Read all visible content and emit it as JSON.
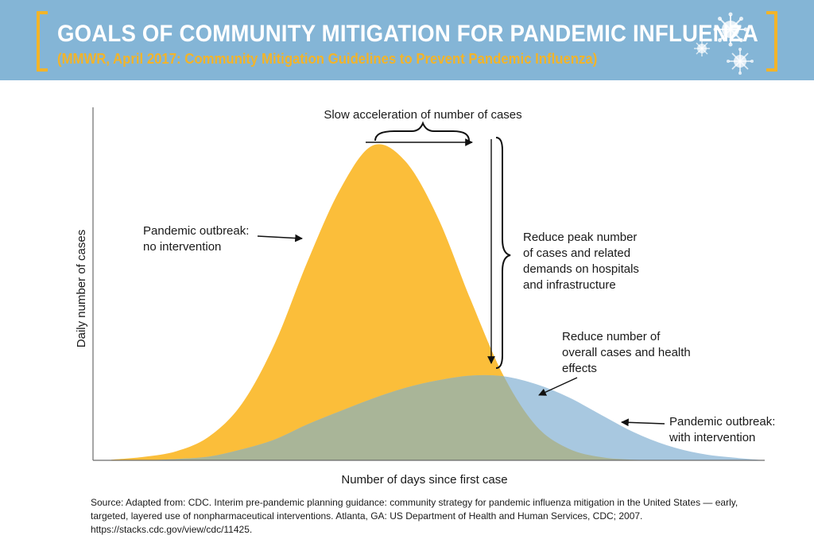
{
  "header": {
    "title": "GOALS OF COMMUNITY MITIGATION FOR PANDEMIC INFLUENZA",
    "subtitle": "(MMWR, April 2017: Community Mitigation Guidelines to Prevent Pandemic Influenza)",
    "banner_color": "#84b5d6",
    "accent_color": "#f2b42a",
    "decoration_icon": "virus-icon"
  },
  "chart_data": {
    "type": "area",
    "xlabel": "Number of days since first case",
    "ylabel": "Daily number of cases",
    "grid": false,
    "legend": "none",
    "x_range": [
      0,
      100
    ],
    "y_range": [
      0,
      100
    ],
    "x": [
      0,
      5,
      10,
      15,
      20,
      25,
      30,
      35,
      40,
      45,
      50,
      55,
      60,
      65,
      70,
      75,
      80,
      85,
      90,
      95,
      100
    ],
    "series": [
      {
        "name": "Pandemic outbreak: no intervention",
        "color": "#fbbe3a",
        "values": [
          0.2,
          1.1,
          2.9,
          7.6,
          18,
          37,
          63,
          86,
          100,
          95,
          77,
          51,
          27,
          11,
          3.7,
          1.0,
          0.2,
          0.0,
          0.0,
          0.0,
          0.0
        ]
      },
      {
        "name": "Pandemic outbreak: with intervention",
        "color": "#a8c8e0",
        "values": [
          0.0,
          0.0,
          0.4,
          1.2,
          3.5,
          6.6,
          11.4,
          15.6,
          19.6,
          23.0,
          25.4,
          26.9,
          26.7,
          24.2,
          20.0,
          14.4,
          8.9,
          4.8,
          2.2,
          0.9,
          0.0
        ]
      }
    ],
    "overlap_color": "#a9b598",
    "annotations": {
      "no_intervention": [
        "Pandemic outbreak:",
        "no intervention"
      ],
      "with_intervention": [
        "Pandemic outbreak:",
        "with intervention"
      ],
      "slow_acceleration": "Slow acceleration of number of cases",
      "reduce_peak": [
        "Reduce peak number",
        "of cases and related",
        "demands on hospitals",
        "and infrastructure"
      ],
      "reduce_overall": [
        "Reduce number of",
        "overall cases and health",
        "effects"
      ]
    }
  },
  "source": "Source: Adapted from: CDC. Interim pre-pandemic planning guidance: community strategy for pandemic influenza mitigation in the United States — early, targeted, layered use of nonpharmaceutical interventions. Atlanta, GA: US Department of Health and Human Services, CDC; 2007. https://stacks.cdc.gov/view/cdc/11425."
}
